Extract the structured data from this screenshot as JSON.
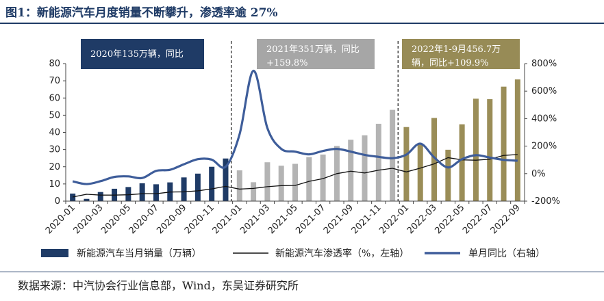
{
  "title": "图1：新能源汽车月度销量不断攀升，渗透率逾 27%",
  "source": "数据来源：中汽协会行业信息部，Wind，东吴证券研究所",
  "colors": {
    "navy": "#1f3b66",
    "gray": "#b4b4b4",
    "olive": "#9a8d57",
    "line_yoy": "#3e5d9a",
    "line_pen": "#111111"
  },
  "annotations": [
    {
      "text_lines": [
        "2020年135万辆，同比"
      ],
      "color": "#1f3b66"
    },
    {
      "text_lines": [
        "2021年351万辆，同比",
        "+159.8%"
      ],
      "color": "#a6a6a6"
    },
    {
      "text_lines": [
        "2022年1-9月456.7万",
        "辆，同比+109.9%"
      ],
      "color": "#978b56"
    }
  ],
  "chart_data": {
    "type": "bar",
    "categories": [
      "2020-01",
      "2020-02",
      "2020-03",
      "2020-04",
      "2020-05",
      "2020-06",
      "2020-07",
      "2020-08",
      "2020-09",
      "2020-10",
      "2020-11",
      "2020-12",
      "2021-01",
      "2021-02",
      "2021-03",
      "2021-04",
      "2021-05",
      "2021-06",
      "2021-07",
      "2021-08",
      "2021-09",
      "2021-10",
      "2021-11",
      "2021-12",
      "2022-01",
      "2022-02",
      "2022-03",
      "2022-04",
      "2022-05",
      "2022-06",
      "2022-07",
      "2022-08",
      "2022-09"
    ],
    "x_tick_labels": [
      "2020-01",
      "2020-03",
      "2020-05",
      "2020-07",
      "2020-09",
      "2020-11",
      "2021-01",
      "2021-03",
      "2021-05",
      "2021-07",
      "2021-09",
      "2021-11",
      "2022-01",
      "2022-03",
      "2022-05",
      "2022-07",
      "2022-09"
    ],
    "y_left": {
      "min": 0,
      "max": 80,
      "ticks": [
        "0",
        "10",
        "20",
        "30",
        "40",
        "50",
        "60",
        "70",
        "80"
      ]
    },
    "y_right": {
      "min": -200,
      "max": 800,
      "ticks": [
        "-200%",
        "0%",
        "200%",
        "400%",
        "600%",
        "800%"
      ]
    },
    "series": [
      {
        "name": "新能源汽车当月销量（万辆）",
        "kind": "bar",
        "axis": "left",
        "values": [
          4.4,
          1.3,
          5.3,
          7.2,
          8.2,
          10.4,
          9.8,
          10.9,
          13.8,
          16.0,
          20.0,
          24.8,
          17.9,
          11.0,
          22.6,
          20.6,
          21.7,
          25.6,
          27.1,
          32.1,
          35.7,
          38.3,
          45.0,
          53.1,
          43.1,
          33.4,
          48.4,
          29.9,
          44.7,
          59.6,
          59.3,
          66.6,
          70.8
        ]
      },
      {
        "name": "新能源汽车渗透率（%，左轴）",
        "kind": "line",
        "axis": "left",
        "values": [
          2.4,
          4.0,
          3.5,
          3.5,
          3.7,
          4.3,
          4.3,
          5.3,
          5.4,
          6.0,
          7.1,
          8.6,
          7.0,
          7.4,
          8.4,
          9.0,
          9.1,
          11.5,
          13.1,
          16.0,
          17.4,
          16.4,
          18.0,
          19.1,
          17.0,
          19.2,
          21.7,
          25.3,
          24.0,
          23.8,
          24.4,
          26.6,
          27.1
        ]
      },
      {
        "name": "单月同比（右轴）",
        "kind": "line",
        "axis": "right",
        "values": [
          -56,
          -76,
          -55,
          -24,
          -20,
          -32,
          20,
          28,
          68,
          105,
          102,
          50,
          285,
          748,
          332,
          180,
          160,
          140,
          165,
          180,
          160,
          136,
          122,
          112,
          138,
          218,
          118,
          45,
          105,
          134,
          117,
          100,
          94
        ]
      }
    ],
    "grid": false,
    "legend_position": "bottom"
  }
}
